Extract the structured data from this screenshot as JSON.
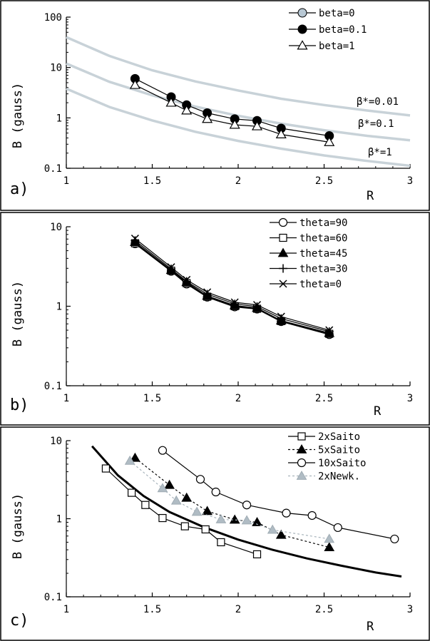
{
  "figure": {
    "panel_labels": [
      "a)",
      "b)",
      "c)"
    ]
  },
  "chart_data": [
    {
      "type": "line",
      "panel": "a)",
      "xlabel": "R",
      "ylabel": "B (gauss)",
      "xlim": [
        1,
        3
      ],
      "ylim": [
        0.1,
        100
      ],
      "yscale": "log",
      "xticks": [
        "1",
        "1.5",
        "2",
        "2.5",
        "3"
      ],
      "yticks": [
        "0.1",
        "1",
        "10",
        "100"
      ],
      "legend_position": "top-right",
      "series": [
        {
          "name": "beta=0",
          "marker": "circle",
          "fill": "#b8c8d4",
          "stroke": "#9aa6ae",
          "line": "#000",
          "in_plot": false,
          "x": [],
          "y": []
        },
        {
          "name": "beta=0.1",
          "marker": "circle",
          "fill": "#000",
          "stroke": "#000",
          "line": "#000",
          "x": [
            1.4,
            1.61,
            1.7,
            1.82,
            1.98,
            2.11,
            2.25,
            2.53
          ],
          "y": [
            6.0,
            2.6,
            1.8,
            1.25,
            0.95,
            0.88,
            0.62,
            0.44
          ]
        },
        {
          "name": "beta=1",
          "marker": "triangle-open",
          "fill": "#fff",
          "stroke": "#000",
          "line": "#000",
          "x": [
            1.4,
            1.61,
            1.7,
            1.82,
            1.98,
            2.11,
            2.25,
            2.53
          ],
          "y": [
            4.5,
            2.0,
            1.4,
            0.95,
            0.73,
            0.68,
            0.47,
            0.33
          ]
        }
      ],
      "reference_curves": [
        {
          "label": "β*=0.01",
          "color": "#c8d2d8",
          "x": [
            1,
            1.25,
            1.5,
            1.75,
            2,
            2.25,
            2.5,
            2.75,
            3
          ],
          "y": [
            40,
            17,
            8.8,
            5.3,
            3.5,
            2.4,
            1.8,
            1.4,
            1.12
          ]
        },
        {
          "label": "β*=0.1",
          "color": "#c8d2d8",
          "x": [
            1,
            1.25,
            1.5,
            1.75,
            2,
            2.25,
            2.5,
            2.75,
            3
          ],
          "y": [
            12,
            5.2,
            2.8,
            1.68,
            1.1,
            0.77,
            0.57,
            0.44,
            0.36
          ]
        },
        {
          "label": "β*=1",
          "color": "#c8d2d8",
          "x": [
            1,
            1.25,
            1.5,
            1.75,
            2,
            2.25,
            2.5,
            2.75,
            3
          ],
          "y": [
            3.8,
            1.65,
            0.89,
            0.53,
            0.35,
            0.245,
            0.18,
            0.14,
            0.112
          ]
        }
      ]
    },
    {
      "type": "line",
      "panel": "b)",
      "xlabel": "R",
      "ylabel": "B (gauss)",
      "xlim": [
        1,
        3
      ],
      "ylim": [
        0.1,
        10
      ],
      "yscale": "log",
      "xticks": [
        "1",
        "1.5",
        "2",
        "2.5",
        "3"
      ],
      "yticks": [
        "0.1",
        "1",
        "10"
      ],
      "legend_position": "top-right",
      "series": [
        {
          "name": "theta=90",
          "marker": "circle-open",
          "x": [
            1.4,
            1.61,
            1.7,
            1.82,
            1.98,
            2.11,
            2.25,
            2.53
          ],
          "y": [
            6.1,
            2.75,
            1.9,
            1.3,
            0.98,
            0.92,
            0.64,
            0.44
          ]
        },
        {
          "name": "theta=60",
          "marker": "square-open",
          "x": [
            1.4,
            1.61,
            1.7,
            1.82,
            1.98,
            2.11,
            2.25,
            2.53
          ],
          "y": [
            6.2,
            2.8,
            1.95,
            1.32,
            1.0,
            0.93,
            0.65,
            0.45
          ]
        },
        {
          "name": "theta=45",
          "marker": "triangle-filled",
          "x": [
            1.4,
            1.61,
            1.7,
            1.82,
            1.98,
            2.11,
            2.25,
            2.53
          ],
          "y": [
            6.4,
            2.85,
            2.0,
            1.35,
            1.02,
            0.95,
            0.66,
            0.46
          ]
        },
        {
          "name": "theta=30",
          "marker": "plus",
          "x": [
            1.4,
            1.61,
            1.7,
            1.82,
            1.98,
            2.11,
            2.25,
            2.53
          ],
          "y": [
            6.7,
            2.95,
            2.05,
            1.42,
            1.07,
            0.99,
            0.7,
            0.48
          ]
        },
        {
          "name": "theta=0",
          "marker": "cross",
          "x": [
            1.4,
            1.61,
            1.7,
            1.82,
            1.98,
            2.11,
            2.25,
            2.53
          ],
          "y": [
            7.1,
            3.1,
            2.15,
            1.5,
            1.12,
            1.04,
            0.74,
            0.5
          ]
        }
      ]
    },
    {
      "type": "line",
      "panel": "c)",
      "xlabel": "R",
      "ylabel": "B (gauss)",
      "xlim": [
        1,
        3
      ],
      "ylim": [
        0.1,
        10
      ],
      "yscale": "log",
      "xticks": [
        "1",
        "1.5",
        "2",
        "2.5",
        "3"
      ],
      "yticks": [
        "0.1",
        "1",
        "10"
      ],
      "legend_position": "top-right",
      "series": [
        {
          "name": "2xSaito",
          "marker": "square-open",
          "color": "#000",
          "dash": false,
          "x": [
            1.23,
            1.38,
            1.46,
            1.56,
            1.69,
            1.81,
            1.9,
            2.11
          ],
          "y": [
            4.4,
            2.15,
            1.5,
            1.02,
            0.8,
            0.73,
            0.5,
            0.35
          ]
        },
        {
          "name": "5xSaito",
          "marker": "triangle-filled",
          "color": "#000",
          "dash": true,
          "x": [
            1.4,
            1.6,
            1.7,
            1.82,
            1.98,
            2.11,
            2.25,
            2.53
          ],
          "y": [
            6.0,
            2.7,
            1.85,
            1.25,
            0.97,
            0.9,
            0.62,
            0.43
          ]
        },
        {
          "name": "10xSaito",
          "marker": "circle-open",
          "color": "#000",
          "dash": false,
          "x": [
            1.56,
            1.78,
            1.87,
            2.05,
            2.28,
            2.43,
            2.58,
            2.91
          ],
          "y": [
            7.5,
            3.2,
            2.2,
            1.5,
            1.18,
            1.1,
            0.77,
            0.55
          ]
        },
        {
          "name": "2xNewk.",
          "marker": "triangle-gray",
          "color": "#a8b4bc",
          "dash": true,
          "x": [
            1.37,
            1.56,
            1.64,
            1.76,
            1.9,
            2.05,
            2.2,
            2.53
          ],
          "y": [
            5.5,
            2.45,
            1.7,
            1.22,
            0.98,
            0.95,
            0.72,
            0.55
          ]
        }
      ],
      "reference_curves": [
        {
          "label": "",
          "color": "#000",
          "x": [
            1.15,
            1.3,
            1.45,
            1.6,
            1.8,
            2.0,
            2.2,
            2.4,
            2.6,
            2.8,
            2.95
          ],
          "y": [
            8.5,
            3.6,
            1.95,
            1.22,
            0.78,
            0.54,
            0.4,
            0.31,
            0.25,
            0.205,
            0.182
          ]
        }
      ]
    }
  ]
}
